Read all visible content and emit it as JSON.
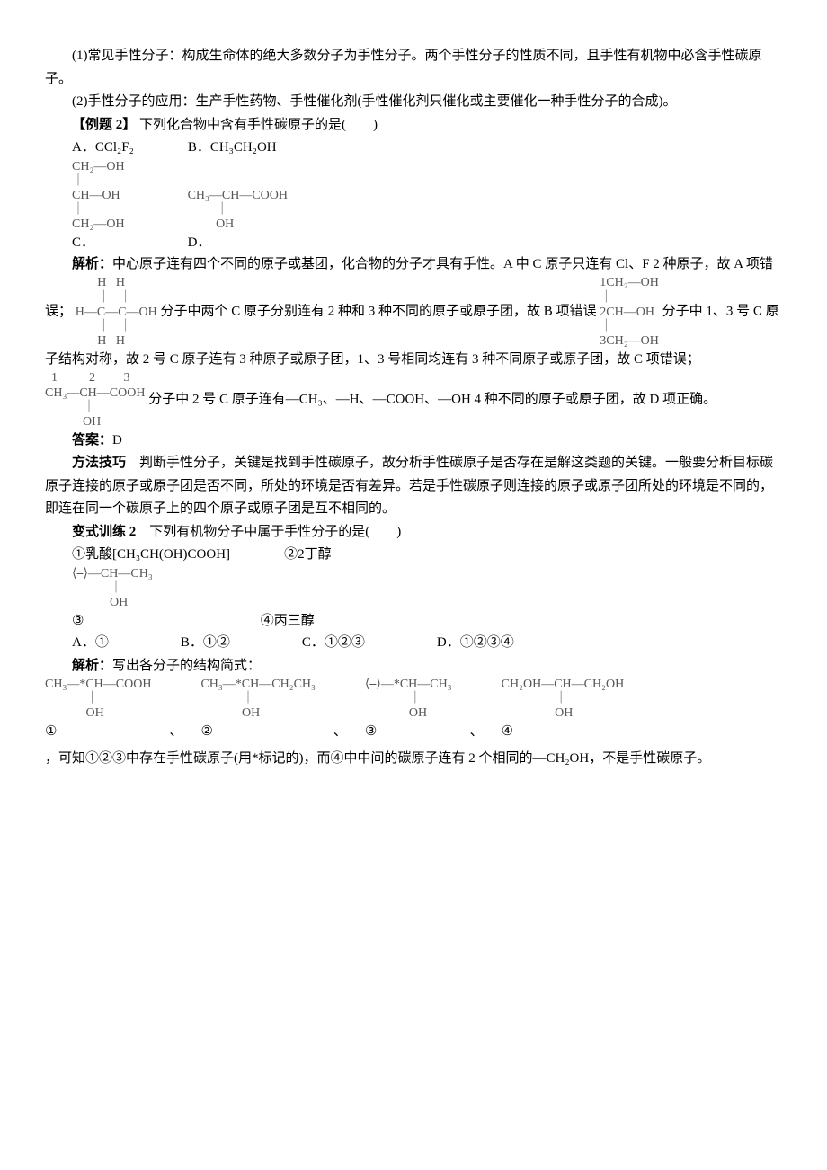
{
  "para1": "(1)常见手性分子：构成生命体的绝大多数分子为手性分子。两个手性分子的性质不同，且手性有机物中必含手性碳原子。",
  "para2": "(2)手性分子的应用：生产手性药物、手性催化剂(手性催化剂只催化或主要催化一种手性分子的合成)。",
  "ex2": {
    "title": "【例题 2】",
    "stem": "下列化合物中含有手性碳原子的是(　　)",
    "optA": "A．CCl₂F₂",
    "optB": "B．CH₃CH₂OH",
    "optC_label": "C．",
    "optC_struct": "CH₂—OH\n｜\nCH—OH\n｜\nCH₂—OH",
    "optD_label": "D．",
    "optD_struct": "CH₃—CH—COOH\n         ｜\n         OH"
  },
  "jiexi": {
    "label": "解析：",
    "t1": "中心原子连有四个不同的原子或基团，化合物的分子才具有手性。A 中 C 原子只连有 Cl、F 2 种原子，故 A 项错误；",
    "structB": "       H   H\n       ｜   ｜\nH—C—C—OH\n       ｜   ｜\n       H   H",
    "t2": "分子中两个 C 原子分别连有 2 种和 3 种不同的原子或原子团，故 B 项错误",
    "structC": "1CH₂—OH\n｜\n2CH—OH\n｜\n3CH₂—OH",
    "t3": "分子中 1、3 号 C 原子结构对称，故 2 号 C 原子连有 3 种原子或原子团，1、3 号相同均连有 3 种不同原子或原子团，故 C 项错误；",
    "structD": "  1          2         3\nCH₃—CH—COOH\n            ｜\n            OH",
    "t4": "分子中 2 号 C 原子连有—CH₃、—H、—COOH、—OH 4 种不同的原子或原子团，故 D 项正确。"
  },
  "answer": {
    "label": "答案：",
    "val": "D"
  },
  "method": {
    "label": "方法技巧",
    "text": "　判断手性分子，关键是找到手性碳原子，故分析手性碳原子是否存在是解这类题的关键。一般要分析目标碳原子连接的原子或原子团是否不同，所处的环境是否有差异。若是手性碳原子则连接的原子或原子团所处的环境是不同的，即连在同一个碳原子上的四个原子或原子团是互不相同的。"
  },
  "var2": {
    "title": "变式训练 2",
    "stem": "　下列有机物分子中属于手性分子的是(　　)",
    "i1": "①乳酸[CH₃CH(OH)COOH]",
    "i2": "②2­丁醇",
    "i3_label": "③",
    "i3_struct": "⟨⎯⟩—CH—CH₃\n            ｜\n            OH",
    "i4": "④丙三醇",
    "optA": "A．①",
    "optB": "B．①②",
    "optC": "C．①②③",
    "optD": "D．①②③④"
  },
  "jiexi2": {
    "label": "解析：",
    "lead": "写出各分子的结构简式：",
    "s1_label": "①",
    "s1": "CH₃—*CH—COOH\n             ｜\n             OH",
    "sep1": "、",
    "s2_label": "②",
    "s2": "CH₃—*CH—CH₂CH₃\n             ｜\n             OH",
    "sep2": "、",
    "s3_label": "③",
    "s3": "⟨⎯⟩—*CH—CH₃\n              ｜\n              OH",
    "sep3": "、",
    "s4_label": "④",
    "s4": "CH₂OH—CH—CH₂OH\n                 ｜\n                 OH",
    "tail": "，可知①②③中存在手性碳原子(用*标记的)，而④中中间的碳原子连有 2 个相同的—CH₂OH，不是手性碳原子。"
  },
  "colors": {
    "text": "#000000",
    "struct": "#555555",
    "bg": "#ffffff"
  }
}
